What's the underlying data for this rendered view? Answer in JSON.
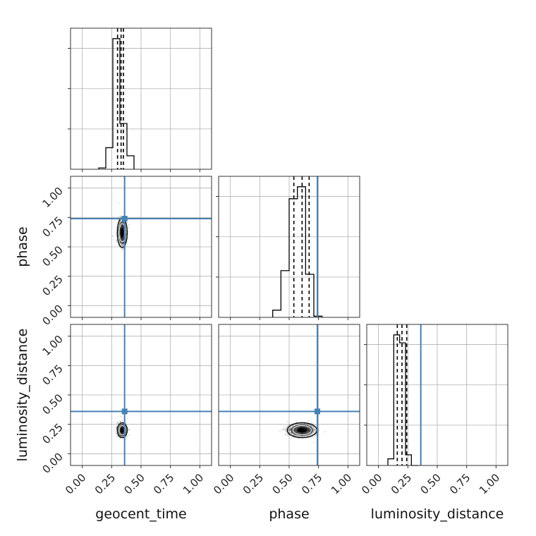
{
  "chart_data": {
    "type": "corner",
    "parameters": [
      "geocent_time",
      "phase",
      "luminosity_distance"
    ],
    "axis_range": [
      -0.1,
      1.1
    ],
    "tick_values": [
      0.0,
      0.25,
      0.5,
      0.75,
      1.0
    ],
    "tick_labels": [
      "0.00",
      "0.25",
      "0.50",
      "0.75",
      "1.00"
    ],
    "grid": true,
    "colors": {
      "truth": "#4682b4",
      "hist": "#000000",
      "points": "#555555"
    },
    "truths": {
      "geocent_time": 0.36,
      "phase": 0.74,
      "luminosity_distance": 0.36
    },
    "histograms": {
      "geocent_time": {
        "edges": [
          0.14,
          0.2,
          0.26,
          0.32,
          0.38,
          0.44
        ],
        "counts": [
          0.01,
          0.16,
          0.97,
          0.34,
          0.1
        ],
        "quantiles": [
          0.3,
          0.33,
          0.35
        ]
      },
      "phase": {
        "edges": [
          0.36,
          0.43,
          0.5,
          0.57,
          0.64,
          0.71,
          0.78
        ],
        "counts": [
          0.06,
          0.39,
          0.99,
          1.09,
          0.36,
          0.01
        ],
        "quantiles": [
          0.54,
          0.61,
          0.67
        ]
      },
      "luminosity_distance": {
        "edges": [
          0.08,
          0.13,
          0.18,
          0.23,
          0.28,
          0.34
        ],
        "counts": [
          0.05,
          0.98,
          0.92,
          0.08,
          0.0
        ],
        "quantiles": [
          0.16,
          0.2,
          0.24
        ]
      }
    },
    "scatter": [
      {
        "x": "geocent_time",
        "y": "phase",
        "x_center": 0.34,
        "y_center": 0.62,
        "x_sigma": 0.02,
        "y_sigma": 0.06
      },
      {
        "x": "geocent_time",
        "y": "luminosity_distance",
        "x_center": 0.34,
        "y_center": 0.2,
        "x_sigma": 0.02,
        "y_sigma": 0.03
      },
      {
        "x": "phase",
        "y": "luminosity_distance",
        "x_center": 0.61,
        "y_center": 0.2,
        "x_sigma": 0.06,
        "y_sigma": 0.03
      }
    ]
  }
}
